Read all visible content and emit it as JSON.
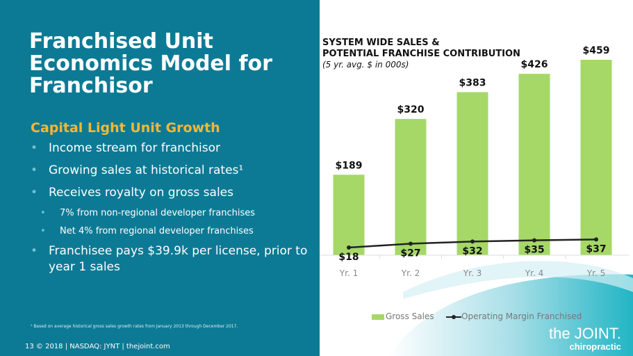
{
  "left": {
    "title": "Franchised Unit Economics Model for Franchisor",
    "subtitle": "Capital Light Unit Growth",
    "bullets": [
      {
        "text": "Income stream for franchisor",
        "level": 1
      },
      {
        "text": "Growing sales at historical rates¹",
        "level": 1
      },
      {
        "text": "Receives royalty on gross sales",
        "level": 1
      },
      {
        "text": "7% from non-regional developer franchises",
        "level": 2
      },
      {
        "text": "Net 4% from regional developer franchises",
        "level": 2
      },
      {
        "text": "Franchisee pays $39.9k per license, prior to year 1 sales",
        "level": 1
      }
    ],
    "footnote": "¹ Based on average historical gross sales growth rates from January 2013 through December 2017.",
    "footer": "13  © 2018 | NASDAQ: JYNT  |  thejoint.com"
  },
  "logo": {
    "line1": "the JOINT.",
    "line2": "chiropractic"
  },
  "colors": {
    "panel": "#0d7a95",
    "accent": "#f7b733",
    "bar": "#a5d867",
    "line": "#222222"
  },
  "chart_data": {
    "type": "bar",
    "title": "SYSTEM WIDE SALES & POTENTIAL FRANCHISE CONTRIBUTION",
    "title_lines": [
      "SYSTEM WIDE SALES &",
      "POTENTIAL FRANCHISE CONTRIBUTION"
    ],
    "subtitle": "(5 yr. avg. $ in 000s)",
    "categories": [
      "Yr. 1",
      "Yr. 2",
      "Yr. 3",
      "Yr. 4",
      "Yr. 5"
    ],
    "series": [
      {
        "name": "Gross Sales",
        "type": "bar",
        "values": [
          189,
          320,
          383,
          426,
          459
        ],
        "labels": [
          "$189",
          "$320",
          "$383",
          "$426",
          "$459"
        ]
      },
      {
        "name": "Operating Margin Franchised",
        "type": "line",
        "values": [
          18,
          27,
          32,
          35,
          37
        ],
        "labels": [
          "$18",
          "$27",
          "$32",
          "$35",
          "$37"
        ]
      }
    ],
    "ylim": [
      0,
      459
    ],
    "grid": false,
    "legend": "bottom"
  }
}
